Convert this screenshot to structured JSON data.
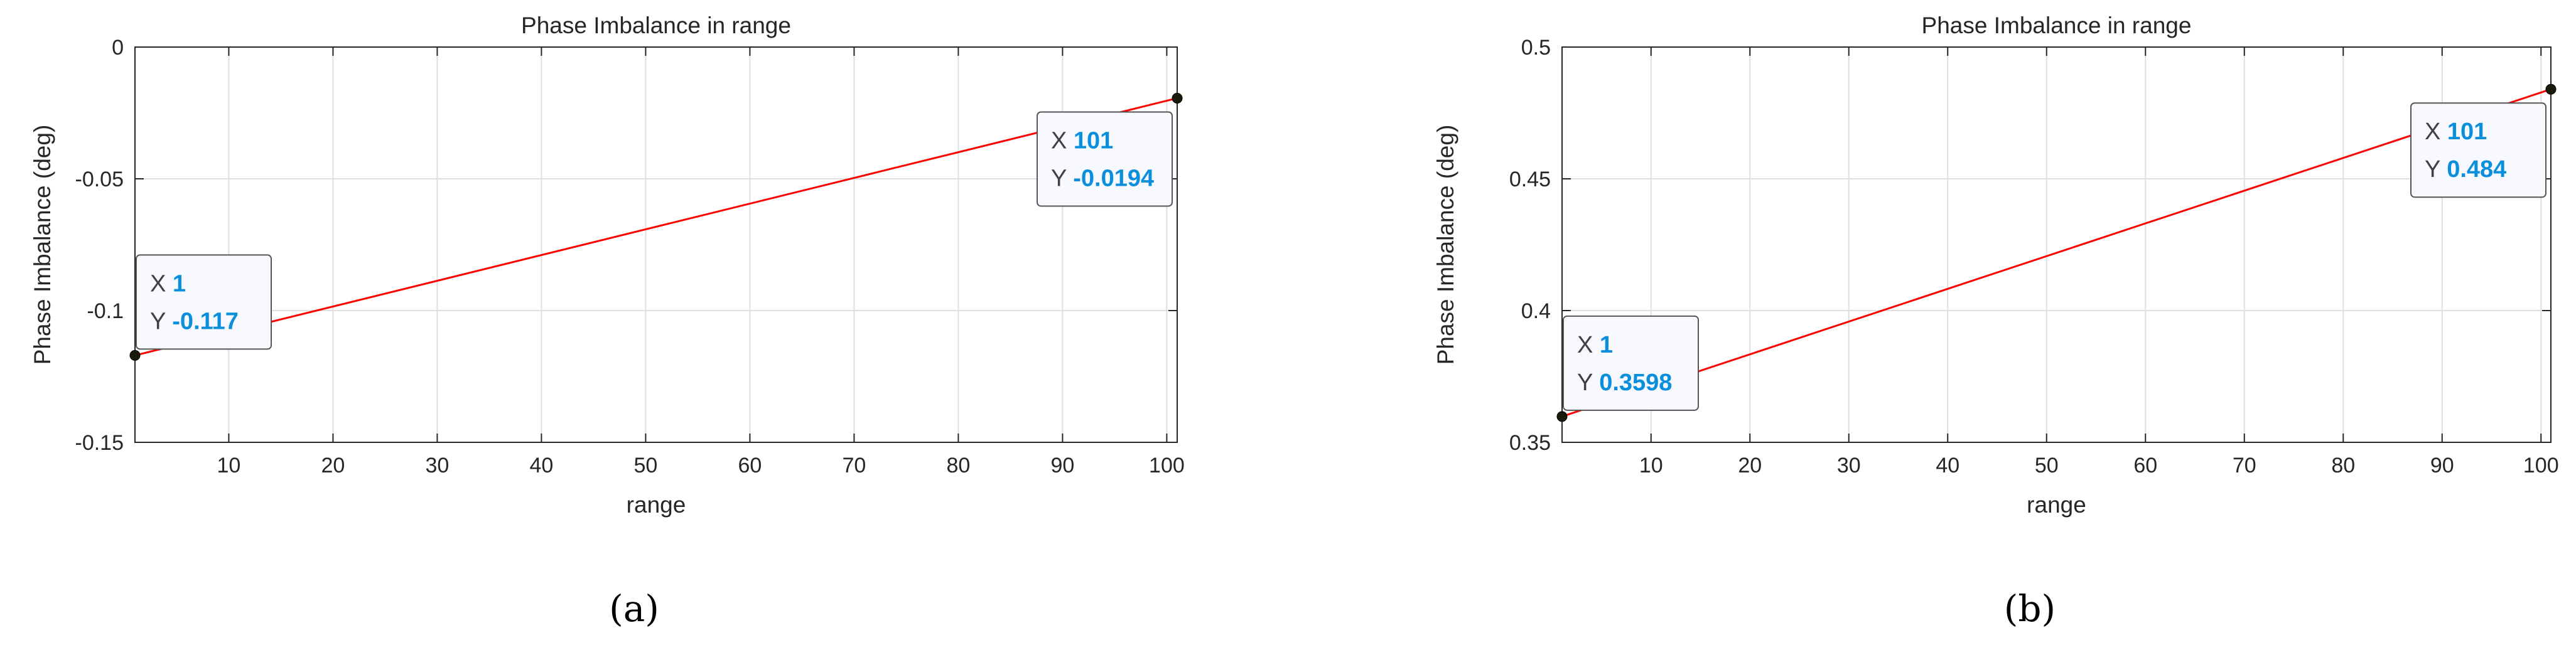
{
  "chart_data": [
    {
      "type": "line",
      "title": "Phase Imbalance in range",
      "xlabel": "range",
      "ylabel": "Phase Imbalance (deg)",
      "xlim": [
        1,
        101
      ],
      "ylim": [
        -0.15,
        0
      ],
      "xticks": [
        10,
        20,
        30,
        40,
        50,
        60,
        70,
        80,
        90,
        100
      ],
      "xtick_labels": [
        "10",
        "20",
        "30",
        "40",
        "50",
        "60",
        "70",
        "80",
        "90",
        "100"
      ],
      "yticks": [
        -0.15,
        -0.1,
        -0.05,
        0
      ],
      "ytick_labels": [
        "-0.15",
        "-0.1",
        "-0.05",
        "0"
      ],
      "grid": true,
      "line_color": "#ff0000",
      "series": [
        {
          "x": [
            1,
            101
          ],
          "y": [
            -0.117,
            -0.0194
          ]
        }
      ],
      "datatips": [
        {
          "x": 1,
          "y": -0.117,
          "x_text": "1",
          "y_text": "-0.117"
        },
        {
          "x": 101,
          "y": -0.0194,
          "x_text": "101",
          "y_text": "-0.0194"
        }
      ],
      "caption": "(a)"
    },
    {
      "type": "line",
      "title": "Phase Imbalance in range",
      "xlabel": "range",
      "ylabel": "Phase Imbalance (deg)",
      "xlim": [
        1,
        101
      ],
      "ylim": [
        0.35,
        0.5
      ],
      "xticks": [
        10,
        20,
        30,
        40,
        50,
        60,
        70,
        80,
        90,
        100
      ],
      "xtick_labels": [
        "10",
        "20",
        "30",
        "40",
        "50",
        "60",
        "70",
        "80",
        "90",
        "100"
      ],
      "yticks": [
        0.35,
        0.4,
        0.45,
        0.5
      ],
      "ytick_labels": [
        "0.35",
        "0.4",
        "0.45",
        "0.5"
      ],
      "grid": true,
      "line_color": "#ff0000",
      "series": [
        {
          "x": [
            1,
            101
          ],
          "y": [
            0.3598,
            0.484
          ]
        }
      ],
      "datatips": [
        {
          "x": 1,
          "y": 0.3598,
          "x_text": "1",
          "y_text": "0.3598"
        },
        {
          "x": 101,
          "y": 0.484,
          "x_text": "101",
          "y_text": "0.484"
        }
      ],
      "caption": "(b)"
    }
  ],
  "datatip_labels": {
    "x": "X",
    "y": "Y"
  },
  "colors": {
    "datatip_value": "#0a8fdc",
    "datatip_label": "#404040",
    "axes": "#262626",
    "grid": "#dfdfdf",
    "marker": "#1a1a0a"
  }
}
